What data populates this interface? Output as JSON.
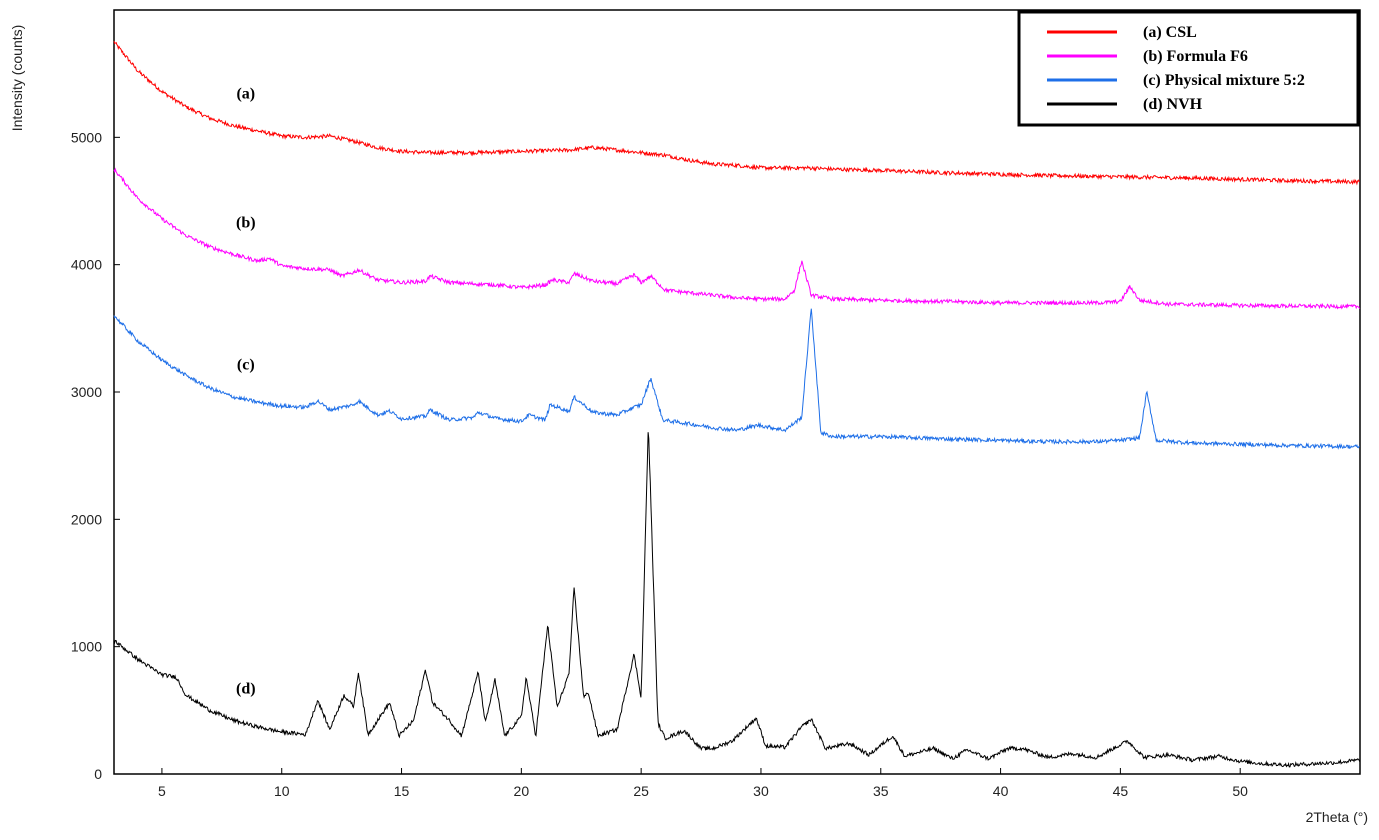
{
  "chart_data": {
    "type": "line",
    "xlabel": "2Theta (°)",
    "ylabel": "Intensity (counts)",
    "xlim": [
      3,
      55
    ],
    "ylim": [
      0,
      6000
    ],
    "x_ticks": [
      5,
      10,
      15,
      20,
      25,
      30,
      35,
      40,
      45,
      50
    ],
    "y_ticks": [
      0,
      1000,
      2000,
      3000,
      4000,
      5000
    ],
    "legend_position": "top-right",
    "grid": false,
    "series": [
      {
        "name": "(a) CSL",
        "label": "(a)",
        "color": "#ff0000",
        "points": [
          [
            3,
            5750
          ],
          [
            4,
            5520
          ],
          [
            5,
            5360
          ],
          [
            6,
            5240
          ],
          [
            7,
            5150
          ],
          [
            8,
            5090
          ],
          [
            9,
            5050
          ],
          [
            10,
            5010
          ],
          [
            11,
            5000
          ],
          [
            12,
            5010
          ],
          [
            13,
            4970
          ],
          [
            14,
            4920
          ],
          [
            15,
            4890
          ],
          [
            16,
            4880
          ],
          [
            18,
            4880
          ],
          [
            20,
            4890
          ],
          [
            22,
            4900
          ],
          [
            23,
            4920
          ],
          [
            24,
            4900
          ],
          [
            25,
            4880
          ],
          [
            26,
            4860
          ],
          [
            27,
            4820
          ],
          [
            28,
            4790
          ],
          [
            29,
            4780
          ],
          [
            30,
            4760
          ],
          [
            31,
            4760
          ],
          [
            32,
            4760
          ],
          [
            33,
            4750
          ],
          [
            35,
            4740
          ],
          [
            38,
            4720
          ],
          [
            40,
            4710
          ],
          [
            42,
            4700
          ],
          [
            45,
            4690
          ],
          [
            48,
            4680
          ],
          [
            50,
            4670
          ],
          [
            52,
            4660
          ],
          [
            55,
            4650
          ]
        ]
      },
      {
        "name": "(b) Formula F6",
        "label": "(b)",
        "color": "#ff00ff",
        "points": [
          [
            3,
            4750
          ],
          [
            4,
            4520
          ],
          [
            5,
            4360
          ],
          [
            6,
            4230
          ],
          [
            7,
            4140
          ],
          [
            8,
            4080
          ],
          [
            9,
            4030
          ],
          [
            9.5,
            4050
          ],
          [
            10,
            3990
          ],
          [
            11,
            3970
          ],
          [
            12,
            3960
          ],
          [
            12.5,
            3910
          ],
          [
            13,
            3940
          ],
          [
            13.2,
            3960
          ],
          [
            14,
            3880
          ],
          [
            15,
            3860
          ],
          [
            16,
            3870
          ],
          [
            16.2,
            3910
          ],
          [
            17,
            3860
          ],
          [
            18,
            3850
          ],
          [
            19,
            3840
          ],
          [
            20,
            3820
          ],
          [
            21,
            3840
          ],
          [
            21.3,
            3880
          ],
          [
            22,
            3860
          ],
          [
            22.2,
            3930
          ],
          [
            23,
            3870
          ],
          [
            24,
            3850
          ],
          [
            24.7,
            3920
          ],
          [
            25,
            3860
          ],
          [
            25.4,
            3910
          ],
          [
            26,
            3800
          ],
          [
            27,
            3780
          ],
          [
            28,
            3760
          ],
          [
            29,
            3740
          ],
          [
            30,
            3730
          ],
          [
            31,
            3730
          ],
          [
            31.4,
            3800
          ],
          [
            31.7,
            4030
          ],
          [
            32.1,
            3760
          ],
          [
            33,
            3730
          ],
          [
            35,
            3720
          ],
          [
            38,
            3710
          ],
          [
            40,
            3700
          ],
          [
            42,
            3700
          ],
          [
            44,
            3700
          ],
          [
            45,
            3710
          ],
          [
            45.4,
            3830
          ],
          [
            45.8,
            3720
          ],
          [
            47,
            3690
          ],
          [
            50,
            3680
          ],
          [
            55,
            3670
          ]
        ]
      },
      {
        "name": "(c) Physical mixture 5:2",
        "label": "(c)",
        "color": "#1e6fe8",
        "points": [
          [
            3,
            3600
          ],
          [
            4,
            3400
          ],
          [
            5,
            3250
          ],
          [
            6,
            3130
          ],
          [
            7,
            3030
          ],
          [
            8,
            2960
          ],
          [
            9,
            2920
          ],
          [
            10,
            2890
          ],
          [
            11,
            2880
          ],
          [
            11.5,
            2930
          ],
          [
            12,
            2860
          ],
          [
            12.5,
            2880
          ],
          [
            13,
            2900
          ],
          [
            13.2,
            2930
          ],
          [
            14,
            2820
          ],
          [
            14.5,
            2850
          ],
          [
            15,
            2790
          ],
          [
            16,
            2810
          ],
          [
            16.2,
            2860
          ],
          [
            17,
            2780
          ],
          [
            18,
            2800
          ],
          [
            18.2,
            2840
          ],
          [
            19,
            2790
          ],
          [
            20,
            2770
          ],
          [
            20.3,
            2820
          ],
          [
            21,
            2780
          ],
          [
            21.2,
            2900
          ],
          [
            22,
            2850
          ],
          [
            22.2,
            2960
          ],
          [
            23,
            2840
          ],
          [
            24,
            2820
          ],
          [
            24.7,
            2880
          ],
          [
            25,
            2900
          ],
          [
            25.4,
            3110
          ],
          [
            25.9,
            2780
          ],
          [
            27,
            2750
          ],
          [
            28,
            2720
          ],
          [
            29,
            2700
          ],
          [
            29.9,
            2740
          ],
          [
            31,
            2700
          ],
          [
            31.7,
            2800
          ],
          [
            32.1,
            3660
          ],
          [
            32.5,
            2680
          ],
          [
            33,
            2650
          ],
          [
            35,
            2650
          ],
          [
            38,
            2630
          ],
          [
            40,
            2620
          ],
          [
            42,
            2610
          ],
          [
            44,
            2610
          ],
          [
            45,
            2620
          ],
          [
            45.8,
            2640
          ],
          [
            46.1,
            3000
          ],
          [
            46.5,
            2620
          ],
          [
            48,
            2600
          ],
          [
            50,
            2590
          ],
          [
            52,
            2580
          ],
          [
            55,
            2570
          ]
        ]
      },
      {
        "name": "(d) NVH",
        "label": "(d)",
        "color": "#000000",
        "points": [
          [
            3,
            1050
          ],
          [
            4,
            900
          ],
          [
            5,
            780
          ],
          [
            5.6,
            760
          ],
          [
            6,
            620
          ],
          [
            7,
            500
          ],
          [
            8,
            420
          ],
          [
            9,
            370
          ],
          [
            10,
            330
          ],
          [
            11,
            310
          ],
          [
            11.5,
            580
          ],
          [
            12,
            350
          ],
          [
            12.6,
            620
          ],
          [
            13,
            530
          ],
          [
            13.2,
            800
          ],
          [
            13.6,
            310
          ],
          [
            14.5,
            560
          ],
          [
            14.9,
            300
          ],
          [
            15.5,
            420
          ],
          [
            16,
            820
          ],
          [
            16.3,
            560
          ],
          [
            17,
            420
          ],
          [
            17.5,
            300
          ],
          [
            18.2,
            800
          ],
          [
            18.5,
            400
          ],
          [
            18.9,
            740
          ],
          [
            19.3,
            300
          ],
          [
            20,
            450
          ],
          [
            20.2,
            760
          ],
          [
            20.6,
            300
          ],
          [
            21.1,
            1170
          ],
          [
            21.5,
            520
          ],
          [
            22,
            800
          ],
          [
            22.2,
            1470
          ],
          [
            22.6,
            600
          ],
          [
            22.8,
            640
          ],
          [
            23.2,
            300
          ],
          [
            24,
            350
          ],
          [
            24.7,
            940
          ],
          [
            25,
            600
          ],
          [
            25.3,
            2750
          ],
          [
            25.7,
            400
          ],
          [
            26,
            280
          ],
          [
            26.8,
            340
          ],
          [
            27.5,
            200
          ],
          [
            28,
            200
          ],
          [
            28.8,
            260
          ],
          [
            29.8,
            440
          ],
          [
            30.2,
            220
          ],
          [
            31,
            210
          ],
          [
            31.7,
            370
          ],
          [
            32.1,
            430
          ],
          [
            32.7,
            200
          ],
          [
            33.7,
            240
          ],
          [
            34.5,
            150
          ],
          [
            35.5,
            300
          ],
          [
            36,
            140
          ],
          [
            37.2,
            200
          ],
          [
            38,
            120
          ],
          [
            38.6,
            190
          ],
          [
            39.5,
            120
          ],
          [
            40.3,
            200
          ],
          [
            40.9,
            200
          ],
          [
            42,
            130
          ],
          [
            43,
            160
          ],
          [
            44,
            130
          ],
          [
            45.3,
            260
          ],
          [
            46,
            130
          ],
          [
            47,
            150
          ],
          [
            48,
            110
          ],
          [
            49.1,
            140
          ],
          [
            50,
            100
          ],
          [
            51,
            80
          ],
          [
            52,
            70
          ],
          [
            53,
            80
          ],
          [
            54,
            90
          ],
          [
            55,
            110
          ]
        ]
      }
    ]
  }
}
